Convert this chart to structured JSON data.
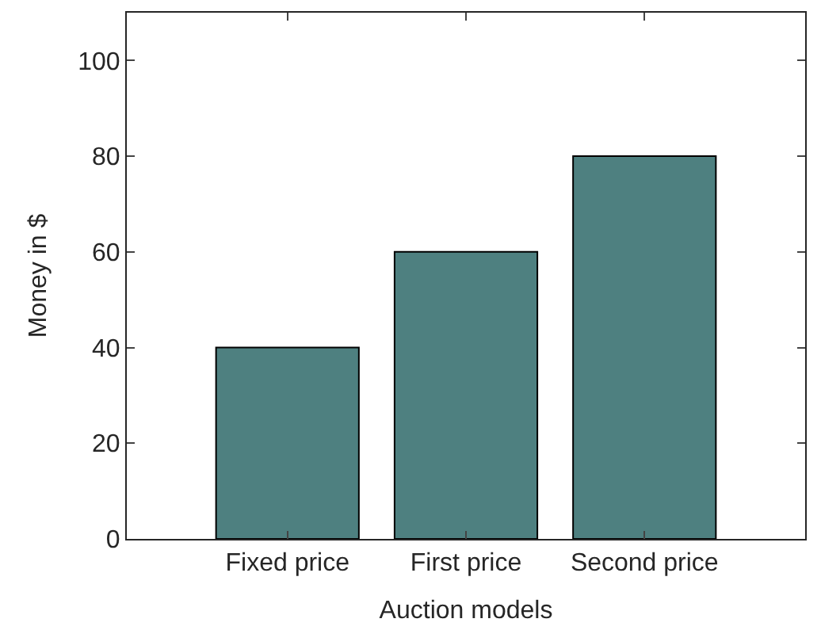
{
  "chart_data": {
    "type": "bar",
    "xlabel": "Auction models",
    "ylabel": "Money in $",
    "categories": [
      "Fixed price",
      "First price",
      "Second price"
    ],
    "values": [
      40,
      60,
      80
    ],
    "color": "#4e8080",
    "ylim": [
      0,
      110
    ],
    "yticks": [
      0,
      20,
      40,
      60,
      80,
      100
    ]
  }
}
